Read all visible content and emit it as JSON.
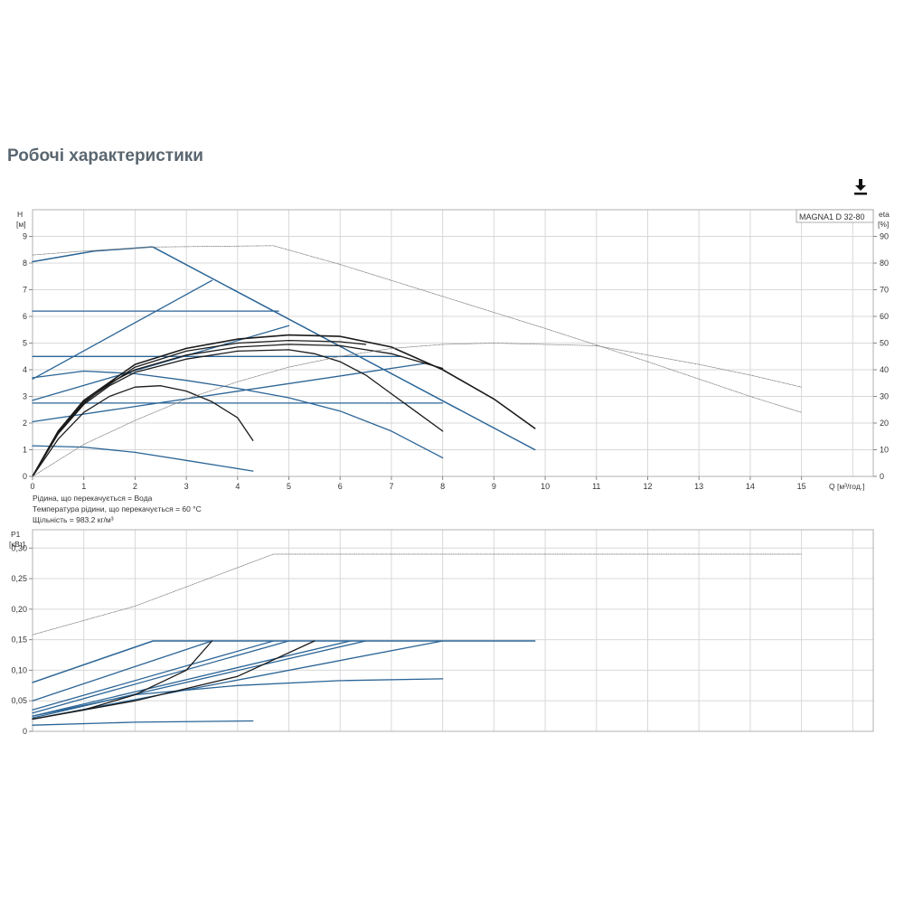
{
  "page": {
    "title": "Робочі характеристики"
  },
  "download": {
    "icon": "download-icon"
  },
  "colors": {
    "blue": "#2a6496",
    "black": "#1a1a1a",
    "grid": "#d8d8d8",
    "gray": "#777777"
  },
  "chart_data": [
    {
      "type": "line",
      "model_label": "MAGNA1 D 32-80",
      "left_axis": {
        "label_line1": "H",
        "label_line2": "[м]",
        "ticks": [
          "0",
          "1",
          "2",
          "3",
          "4",
          "5",
          "6",
          "7",
          "8",
          "9"
        ],
        "range": [
          0,
          10
        ]
      },
      "right_axis": {
        "label_line1": "eta",
        "label_line2": "[%]",
        "ticks": [
          "0",
          "10",
          "20",
          "30",
          "40",
          "50",
          "60",
          "70",
          "80",
          "90"
        ],
        "range": [
          0,
          100
        ]
      },
      "x_axis": {
        "label": "Q [м³/год.]",
        "ticks": [
          "0",
          "1",
          "2",
          "3",
          "4",
          "5",
          "6",
          "7",
          "8",
          "9",
          "10",
          "11",
          "12",
          "13",
          "14",
          "15"
        ],
        "range": [
          0,
          16.4
        ]
      },
      "notes": [
        "Рідина, що перекачується = Вода",
        "Температура рідини, що перекачується = 60 °C",
        "Щільність = 983.2 кг/м³"
      ],
      "series": [
        {
          "color": "blue",
          "width": 1.5,
          "points": [
            [
              0,
              8.05
            ],
            [
              1.2,
              8.45
            ],
            [
              2.3,
              8.6
            ],
            [
              2.35,
              8.6
            ],
            [
              9.8,
              1.0
            ]
          ]
        },
        {
          "color": "blue",
          "width": 1.3,
          "points": [
            [
              0,
              3.65
            ],
            [
              3.5,
              7.35
            ]
          ]
        },
        {
          "color": "blue",
          "width": 1.3,
          "points": [
            [
              0,
              6.2
            ],
            [
              4.8,
              6.2
            ]
          ]
        },
        {
          "color": "blue",
          "width": 1.3,
          "points": [
            [
              0,
              2.85
            ],
            [
              5.0,
              5.65
            ]
          ]
        },
        {
          "color": "blue",
          "width": 1.3,
          "points": [
            [
              0,
              4.5
            ],
            [
              7.2,
              4.5
            ]
          ]
        },
        {
          "color": "blue",
          "width": 1.3,
          "points": [
            [
              0,
              2.05
            ],
            [
              7.7,
              4.25
            ]
          ]
        },
        {
          "color": "blue",
          "width": 1.3,
          "points": [
            [
              0,
              2.75
            ],
            [
              8.0,
              2.75
            ]
          ]
        },
        {
          "color": "blue",
          "width": 1.3,
          "points": [
            [
              0,
              3.7
            ],
            [
              1.0,
              3.95
            ],
            [
              2.0,
              3.85
            ],
            [
              3.0,
              3.6
            ],
            [
              4.0,
              3.3
            ],
            [
              5.0,
              2.95
            ],
            [
              6.0,
              2.45
            ],
            [
              7.0,
              1.7
            ],
            [
              8.0,
              0.7
            ]
          ]
        },
        {
          "color": "blue",
          "width": 1.3,
          "points": [
            [
              0,
              1.15
            ],
            [
              1.0,
              1.1
            ],
            [
              2.0,
              0.9
            ],
            [
              3.0,
              0.6
            ],
            [
              4.3,
              0.2
            ]
          ]
        },
        {
          "color": "black",
          "width": 1.3,
          "points": [
            [
              0,
              0
            ],
            [
              0.5,
              1.4
            ],
            [
              1.0,
              2.4
            ],
            [
              1.5,
              3.0
            ],
            [
              2.0,
              3.35
            ],
            [
              2.5,
              3.4
            ],
            [
              3.0,
              3.2
            ],
            [
              3.5,
              2.8
            ],
            [
              4.0,
              2.2
            ],
            [
              4.3,
              1.35
            ]
          ]
        },
        {
          "color": "black",
          "width": 1.3,
          "points": [
            [
              0,
              0
            ],
            [
              0.5,
              1.6
            ],
            [
              1.0,
              2.7
            ],
            [
              1.5,
              3.4
            ],
            [
              2.0,
              3.9
            ],
            [
              3.0,
              4.4
            ],
            [
              4.0,
              4.7
            ],
            [
              5.0,
              4.75
            ],
            [
              5.5,
              4.6
            ],
            [
              6.0,
              4.3
            ],
            [
              6.5,
              3.8
            ],
            [
              7.0,
              3.1
            ],
            [
              7.5,
              2.4
            ],
            [
              8.0,
              1.7
            ]
          ]
        },
        {
          "color": "black",
          "width": 1.3,
          "points": [
            [
              0,
              0
            ],
            [
              0.5,
              1.65
            ],
            [
              1.0,
              2.75
            ],
            [
              1.5,
              3.5
            ],
            [
              2.0,
              4.0
            ],
            [
              3.0,
              4.55
            ],
            [
              4.0,
              4.85
            ],
            [
              5.0,
              4.95
            ],
            [
              6.0,
              4.9
            ],
            [
              7.0,
              4.6
            ],
            [
              8.0,
              4.05
            ]
          ]
        },
        {
          "color": "black",
          "width": 1.3,
          "points": [
            [
              0,
              0
            ],
            [
              0.5,
              1.7
            ],
            [
              1.0,
              2.8
            ],
            [
              2.0,
              4.1
            ],
            [
              3.0,
              4.7
            ],
            [
              4.0,
              5.0
            ],
            [
              5.0,
              5.1
            ],
            [
              6.0,
              5.05
            ],
            [
              6.5,
              4.95
            ]
          ]
        },
        {
          "color": "black",
          "width": 1.6,
          "points": [
            [
              0,
              0
            ],
            [
              0.5,
              1.7
            ],
            [
              1.0,
              2.85
            ],
            [
              2.0,
              4.2
            ],
            [
              3.0,
              4.8
            ],
            [
              4.0,
              5.15
            ],
            [
              5.0,
              5.3
            ],
            [
              6.0,
              5.25
            ],
            [
              7.0,
              4.85
            ],
            [
              8.0,
              4.0
            ],
            [
              9.0,
              2.9
            ],
            [
              9.8,
              1.8
            ]
          ]
        },
        {
          "color": "gray",
          "width": 0.7,
          "points": [
            [
              0,
              8.3
            ],
            [
              1.0,
              8.45
            ],
            [
              2.3,
              8.6
            ],
            [
              4.7,
              8.65
            ],
            [
              6.0,
              7.95
            ],
            [
              8.0,
              6.75
            ],
            [
              10.0,
              5.55
            ],
            [
              12.0,
              4.3
            ],
            [
              14.0,
              3.0
            ],
            [
              15.0,
              2.4
            ]
          ]
        },
        {
          "color": "gray",
          "width": 0.7,
          "points": [
            [
              0,
              0
            ],
            [
              1.0,
              1.2
            ],
            [
              2.0,
              2.1
            ],
            [
              3.0,
              2.9
            ],
            [
              4.0,
              3.55
            ],
            [
              5.0,
              4.1
            ],
            [
              6.0,
              4.5
            ],
            [
              7.0,
              4.8
            ],
            [
              8.0,
              4.95
            ],
            [
              9.0,
              5.0
            ],
            [
              10.0,
              4.95
            ],
            [
              11.0,
              4.9
            ],
            [
              12.0,
              4.55
            ],
            [
              13.0,
              4.2
            ],
            [
              14.0,
              3.8
            ],
            [
              15.0,
              3.35
            ]
          ]
        }
      ]
    },
    {
      "type": "line",
      "left_axis": {
        "label_line1": "P1",
        "label_line2": "[кВт]",
        "ticks": [
          "0",
          "0,05",
          "0,10",
          "0,15",
          "0,20",
          "0,25",
          "0,30"
        ],
        "range": [
          0,
          0.33
        ]
      },
      "x_axis": {
        "range": [
          0,
          16.4
        ]
      },
      "series": [
        {
          "color": "blue",
          "width": 1.5,
          "points": [
            [
              0,
              0.08
            ],
            [
              2.35,
              0.148
            ],
            [
              9.8,
              0.148
            ]
          ]
        },
        {
          "color": "blue",
          "width": 1.3,
          "points": [
            [
              0,
              0.05
            ],
            [
              3.5,
              0.148
            ]
          ]
        },
        {
          "color": "blue",
          "width": 1.3,
          "points": [
            [
              0,
              0.035
            ],
            [
              4.7,
              0.148
            ]
          ]
        },
        {
          "color": "blue",
          "width": 1.3,
          "points": [
            [
              0,
              0.03
            ],
            [
              5.0,
              0.148
            ]
          ]
        },
        {
          "color": "blue",
          "width": 1.3,
          "points": [
            [
              0,
              0.025
            ],
            [
              6.2,
              0.148
            ]
          ]
        },
        {
          "color": "blue",
          "width": 1.3,
          "points": [
            [
              0,
              0.022
            ],
            [
              6.5,
              0.148
            ]
          ]
        },
        {
          "color": "blue",
          "width": 1.3,
          "points": [
            [
              0,
              0.02
            ],
            [
              8.0,
              0.148
            ]
          ]
        },
        {
          "color": "blue",
          "width": 1.3,
          "points": [
            [
              0,
              0.025
            ],
            [
              2.0,
              0.06
            ],
            [
              4.0,
              0.075
            ],
            [
              6.0,
              0.083
            ],
            [
              8.0,
              0.086
            ]
          ]
        },
        {
          "color": "blue",
          "width": 1.3,
          "points": [
            [
              0,
              0.01
            ],
            [
              2.0,
              0.015
            ],
            [
              4.3,
              0.017
            ]
          ]
        },
        {
          "color": "black",
          "width": 1.3,
          "points": [
            [
              0,
              0.02
            ],
            [
              1.0,
              0.035
            ],
            [
              2.0,
              0.06
            ],
            [
              3.0,
              0.1
            ],
            [
              3.5,
              0.148
            ]
          ]
        },
        {
          "color": "black",
          "width": 1.3,
          "points": [
            [
              0,
              0.02
            ],
            [
              2.0,
              0.05
            ],
            [
              4.0,
              0.09
            ],
            [
              5.5,
              0.148
            ]
          ]
        },
        {
          "color": "gray",
          "width": 0.7,
          "points": [
            [
              0,
              0.158
            ],
            [
              2.0,
              0.205
            ],
            [
              4.7,
              0.29
            ],
            [
              15.0,
              0.29
            ]
          ]
        }
      ]
    }
  ]
}
